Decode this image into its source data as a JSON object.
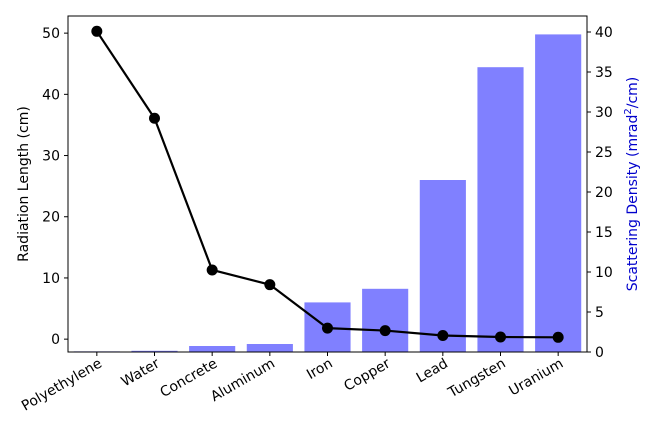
{
  "chart_data": {
    "type": "bar+line",
    "categories": [
      "Polyethylene",
      "Water",
      "Concrete",
      "Aluminum",
      "Iron",
      "Copper",
      "Lead",
      "Tungsten",
      "Uranium"
    ],
    "series": [
      {
        "axis": "right",
        "kind": "bar",
        "color": "#8080ff",
        "values": [
          0.08,
          0.15,
          0.75,
          1.0,
          6.2,
          7.9,
          21.5,
          35.6,
          39.7
        ]
      },
      {
        "axis": "left",
        "kind": "line",
        "color": "#000000",
        "values": [
          50.3,
          36.1,
          11.3,
          8.9,
          1.8,
          1.4,
          0.6,
          0.35,
          0.3
        ]
      }
    ],
    "ylabel": "Radiation Length (cm)",
    "y2label_main": "Scattering Density (mrad",
    "y2label_sup": "2",
    "y2label_end": "/cm)",
    "y2label_color": "#0000cc",
    "ylim": [
      -2.1,
      52.8
    ],
    "y2lim": [
      0,
      42
    ],
    "yticks": [
      "0",
      "10",
      "20",
      "30",
      "40",
      "50"
    ],
    "y2ticks": [
      "0",
      "5",
      "10",
      "15",
      "20",
      "25",
      "30",
      "35",
      "40"
    ]
  }
}
